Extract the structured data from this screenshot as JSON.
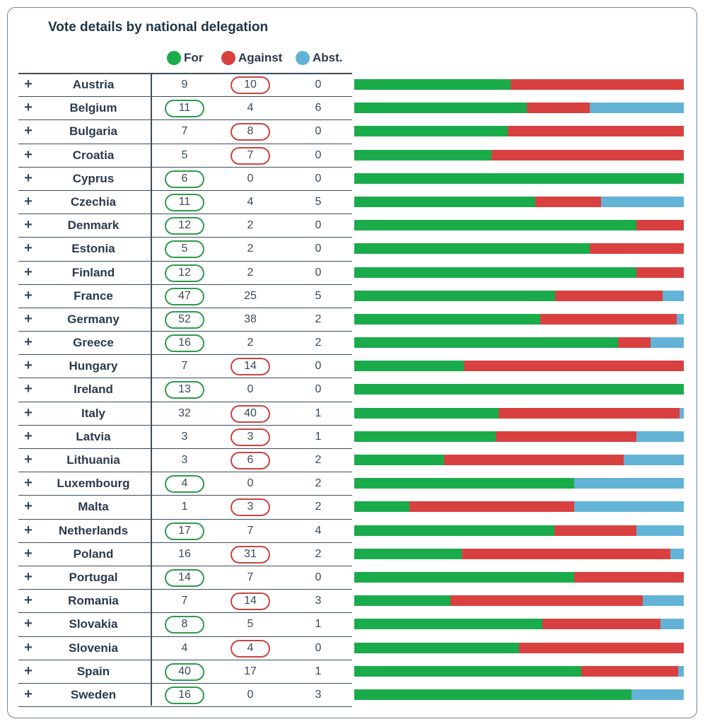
{
  "title": "Vote details by national delegation",
  "legend": {
    "for": "For",
    "against": "Against",
    "abst": "Abst."
  },
  "colors": {
    "for": "#1aab4b",
    "against": "#d94040",
    "abst": "#62b3d6"
  },
  "expand_symbol": "+",
  "rows": [
    {
      "country": "Austria",
      "for": 9,
      "against": 10,
      "abst": 0,
      "majority": "against"
    },
    {
      "country": "Belgium",
      "for": 11,
      "against": 4,
      "abst": 6,
      "majority": "for"
    },
    {
      "country": "Bulgaria",
      "for": 7,
      "against": 8,
      "abst": 0,
      "majority": "against"
    },
    {
      "country": "Croatia",
      "for": 5,
      "against": 7,
      "abst": 0,
      "majority": "against"
    },
    {
      "country": "Cyprus",
      "for": 6,
      "against": 0,
      "abst": 0,
      "majority": "for"
    },
    {
      "country": "Czechia",
      "for": 11,
      "against": 4,
      "abst": 5,
      "majority": "for"
    },
    {
      "country": "Denmark",
      "for": 12,
      "against": 2,
      "abst": 0,
      "majority": "for"
    },
    {
      "country": "Estonia",
      "for": 5,
      "against": 2,
      "abst": 0,
      "majority": "for"
    },
    {
      "country": "Finland",
      "for": 12,
      "against": 2,
      "abst": 0,
      "majority": "for"
    },
    {
      "country": "France",
      "for": 47,
      "against": 25,
      "abst": 5,
      "majority": "for"
    },
    {
      "country": "Germany",
      "for": 52,
      "against": 38,
      "abst": 2,
      "majority": "for"
    },
    {
      "country": "Greece",
      "for": 16,
      "against": 2,
      "abst": 2,
      "majority": "for"
    },
    {
      "country": "Hungary",
      "for": 7,
      "against": 14,
      "abst": 0,
      "majority": "against"
    },
    {
      "country": "Ireland",
      "for": 13,
      "against": 0,
      "abst": 0,
      "majority": "for"
    },
    {
      "country": "Italy",
      "for": 32,
      "against": 40,
      "abst": 1,
      "majority": "against"
    },
    {
      "country": "Latvia",
      "for": 3,
      "against": 3,
      "abst": 1,
      "majority": "against"
    },
    {
      "country": "Lithuania",
      "for": 3,
      "against": 6,
      "abst": 2,
      "majority": "against"
    },
    {
      "country": "Luxembourg",
      "for": 4,
      "against": 0,
      "abst": 2,
      "majority": "for"
    },
    {
      "country": "Malta",
      "for": 1,
      "against": 3,
      "abst": 2,
      "majority": "against"
    },
    {
      "country": "Netherlands",
      "for": 17,
      "against": 7,
      "abst": 4,
      "majority": "for"
    },
    {
      "country": "Poland",
      "for": 16,
      "against": 31,
      "abst": 2,
      "majority": "against"
    },
    {
      "country": "Portugal",
      "for": 14,
      "against": 7,
      "abst": 0,
      "majority": "for"
    },
    {
      "country": "Romania",
      "for": 7,
      "against": 14,
      "abst": 3,
      "majority": "against"
    },
    {
      "country": "Slovakia",
      "for": 8,
      "against": 5,
      "abst": 1,
      "majority": "for"
    },
    {
      "country": "Slovenia",
      "for": 4,
      "against": 4,
      "abst": 0,
      "majority": "against"
    },
    {
      "country": "Spain",
      "for": 40,
      "against": 17,
      "abst": 1,
      "majority": "for"
    },
    {
      "country": "Sweden",
      "for": 16,
      "against": 0,
      "abst": 3,
      "majority": "for"
    }
  ]
}
